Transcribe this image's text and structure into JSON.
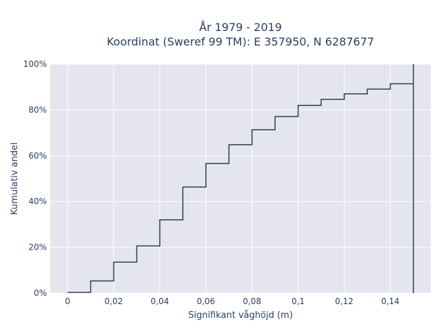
{
  "chart_data": {
    "type": "line",
    "line_shape": "step",
    "title_lines": [
      "År 1979 - 2019",
      "Koordinat (Sweref 99 TM): E 357950, N 6287677"
    ],
    "xlabel": "Signifikant våghöjd (m)",
    "ylabel": "Kumulativ andel",
    "xlim": [
      -0.0075,
      0.1575
    ],
    "ylim": [
      0,
      100
    ],
    "x_ticks": [
      0,
      0.02,
      0.04,
      0.06,
      0.08,
      0.1,
      0.12,
      0.14
    ],
    "x_tick_labels": [
      "0",
      "0,02",
      "0,04",
      "0,06",
      "0,08",
      "0,1",
      "0,12",
      "0,14"
    ],
    "y_ticks": [
      0,
      20,
      40,
      60,
      80,
      100
    ],
    "y_tick_labels": [
      "0%",
      "20%",
      "40%",
      "60%",
      "80%",
      "100%"
    ],
    "grid": true,
    "colors": {
      "line": "#2a3f4f",
      "plot_bg": "#e5e5ee",
      "grid": "#ffffff"
    },
    "x": [
      0,
      0.01,
      0.02,
      0.03,
      0.04,
      0.05,
      0.06,
      0.07,
      0.08,
      0.09,
      0.1,
      0.11,
      0.12,
      0.13,
      0.14,
      0.15,
      0.15
    ],
    "y": [
      0.3,
      5.3,
      13.5,
      20.6,
      32.0,
      46.3,
      56.6,
      64.8,
      71.3,
      77.1,
      82.0,
      84.6,
      87.0,
      89.1,
      91.4,
      100,
      0
    ]
  }
}
